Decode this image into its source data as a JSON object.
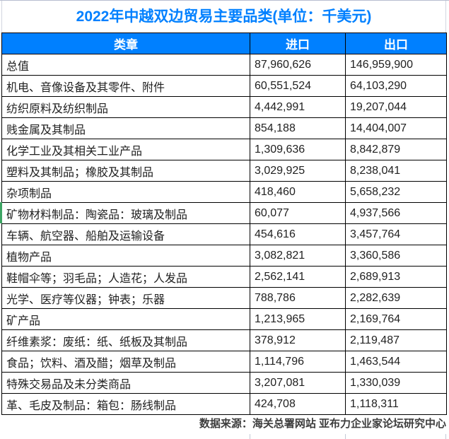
{
  "page": {
    "title": "2022年中越双边贸易主要品类(单位：千美元)",
    "source_note": "数据来源：海关总署网站 亚布力企业家论坛研究中心"
  },
  "colors": {
    "accent_blue": "#0080FF",
    "header_text": "#FFFFFF",
    "table_border": "#000000",
    "body_text": "#212121",
    "footer_text": "#3D3D3D",
    "row_marker_green": "#3EA564",
    "gridline_gray": "#B8BED0"
  },
  "chart_data": {
    "type": "table",
    "title": "2022年中越双边贸易主要品类(单位：千美元)",
    "unit": "千美元",
    "columns": [
      "类章",
      "进口",
      "出口"
    ],
    "rows": [
      [
        "总值",
        "87,960,626",
        "146,959,900"
      ],
      [
        "机电、音像设备及其零件、附件",
        "60,551,524",
        "64,103,290"
      ],
      [
        "纺织原料及纺织制品",
        "4,442,991",
        "19,207,044"
      ],
      [
        "贱金属及其制品",
        "854,188",
        "14,404,007"
      ],
      [
        "化学工业及其相关工业产品",
        "1,309,636",
        "8,842,879"
      ],
      [
        "塑料及其制品；橡胶及其制品",
        "3,029,925",
        "8,238,041"
      ],
      [
        "杂项制品",
        "418,460",
        "5,658,232"
      ],
      [
        "矿物材料制品：陶瓷品：玻璃及制品",
        "60,077",
        "4,937,566"
      ],
      [
        "车辆、航空器、船舶及运输设备",
        "454,616",
        "3,457,764"
      ],
      [
        "植物产品",
        "3,082,821",
        "3,360,586"
      ],
      [
        "鞋帽伞等；羽毛品；人造花；人发品",
        "2,562,141",
        "2,689,913"
      ],
      [
        "光学、医疗等仪器；钟表；乐器",
        "788,786",
        "2,282,639"
      ],
      [
        "矿产品",
        "1,213,965",
        "2,169,764"
      ],
      [
        "纤维素浆：废纸：纸、纸板及其制品",
        "378,912",
        "2,119,487"
      ],
      [
        "食品；饮料、酒及醋；烟草及制品",
        "1,114,796",
        "1,463,544"
      ],
      [
        "特殊交易品及未分类商品",
        "3,207,081",
        "1,330,039"
      ],
      [
        "革、毛皮及制品：箱包：肠线制品",
        "424,708",
        "1,118,311"
      ]
    ],
    "source": "数据来源：海关总署网站 亚布力企业家论坛研究中心",
    "highlighted_row_index": 7
  }
}
